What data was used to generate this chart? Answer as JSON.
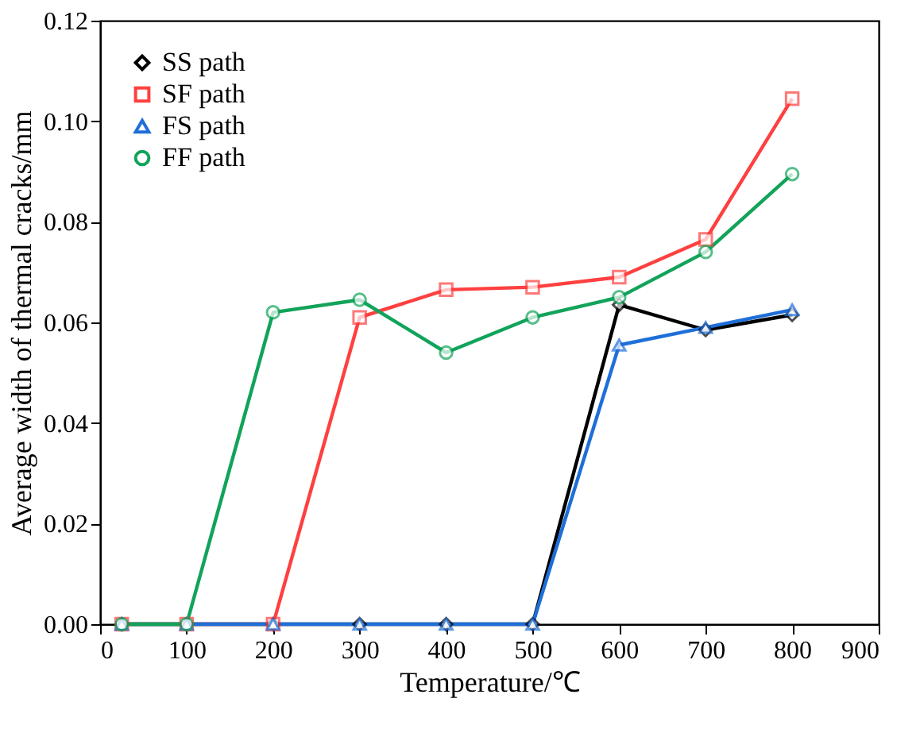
{
  "chart_data": {
    "type": "line",
    "xlabel": "Temperature/℃",
    "ylabel": "Average width of thermal cracks/mm",
    "x": [
      25,
      100,
      200,
      300,
      400,
      500,
      600,
      700,
      800
    ],
    "series": [
      {
        "name": "SS path",
        "color": "#000000",
        "marker": "diamond",
        "values": [
          0,
          0,
          0,
          0,
          0,
          0,
          0.0635,
          0.0585,
          0.0615
        ]
      },
      {
        "name": "SF path",
        "color": "#ff4040",
        "marker": "square",
        "values": [
          0,
          0,
          0,
          0.061,
          0.0665,
          0.067,
          0.069,
          0.0765,
          0.1045
        ]
      },
      {
        "name": "FS path",
        "color": "#1f6fd8",
        "marker": "triangle",
        "values": [
          0,
          0,
          0,
          0,
          0,
          0,
          0.0555,
          0.059,
          0.0625
        ]
      },
      {
        "name": "FF path",
        "color": "#12a35a",
        "marker": "circle",
        "values": [
          0,
          0,
          0.062,
          0.0645,
          0.054,
          0.061,
          0.065,
          0.074,
          0.0895
        ]
      }
    ],
    "xlim": [
      0,
      900
    ],
    "xticks": [
      0,
      100,
      200,
      300,
      400,
      500,
      600,
      700,
      800,
      900
    ],
    "ylim": [
      0,
      0.12
    ],
    "yticks": [
      {
        "value": 0,
        "label": "0.00"
      },
      {
        "value": 0.02,
        "label": "0.02"
      },
      {
        "value": 0.04,
        "label": "0.04"
      },
      {
        "value": 0.06,
        "label": "0.06"
      },
      {
        "value": 0.08,
        "label": "0.08"
      },
      {
        "value": 0.1,
        "label": "0.10"
      },
      {
        "value": 0.12,
        "label": "0.12"
      }
    ],
    "grid": false,
    "legend": "top left",
    "line_style": "solid"
  }
}
